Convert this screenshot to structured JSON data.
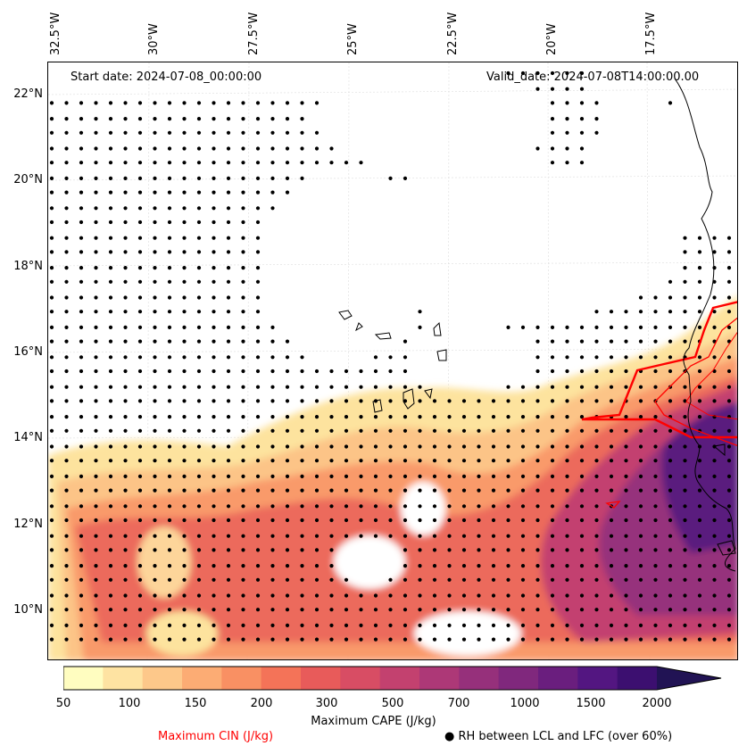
{
  "lon_labels": [
    "32.5°W",
    "30°W",
    "27.5°W",
    "25°W",
    "22.5°W",
    "20°W",
    "17.5°W"
  ],
  "lat_labels": [
    "22°N",
    "20°N",
    "18°N",
    "16°N",
    "14°N",
    "12°N",
    "10°N"
  ],
  "start_date": "Start date: 2024-07-08_00:00:00",
  "valid_date": "Valid_date: 2024-07-08T14:00:00.00",
  "colorbar": {
    "ticks": [
      "50",
      "100",
      "150",
      "200",
      "300",
      "500",
      "700",
      "1000",
      "1500",
      "2000"
    ],
    "colors": [
      "#fffdc0",
      "#fee3a2",
      "#fdc88a",
      "#fcac74",
      "#f99063",
      "#f47358",
      "#e85b5a",
      "#d84d64",
      "#c3416f",
      "#ad3877",
      "#96307b",
      "#80287d",
      "#6a1e7e",
      "#531681",
      "#3c0f70",
      "#211354"
    ],
    "title": "Maximum CAPE (J/kg)"
  },
  "legend": {
    "cin_label": "Maximum CIN (J/kg)",
    "cin_color": "#ff0000",
    "rh_marker": "●",
    "rh_label": "RH between LCL and LFC (over 60%)"
  }
}
